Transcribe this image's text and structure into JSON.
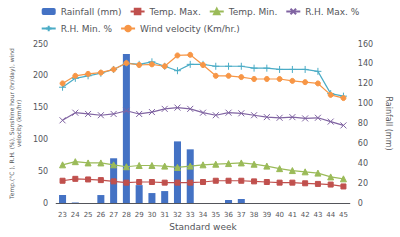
{
  "chart_data": {
    "type": "line",
    "xlabel": "Standard week",
    "ylabel": "Temp.(°C ), R.H. (%), Sunshine hour (hr/day), wind\nvelocity (km/hr)",
    "y2label": "Rainfall (mm)",
    "categories": [
      23,
      24,
      25,
      26,
      27,
      28,
      29,
      30,
      31,
      32,
      33,
      34,
      35,
      36,
      37,
      38,
      39,
      40,
      41,
      42,
      43,
      44,
      45
    ],
    "series": [
      {
        "name": "Rainfall (mm)",
        "type": "bar",
        "axis": "y2",
        "color": "#4472c4",
        "values": [
          8,
          0.5,
          0,
          8,
          45,
          150,
          18,
          10,
          12,
          62,
          54,
          0,
          0,
          3,
          4,
          0,
          0,
          0,
          0,
          0,
          0,
          0,
          0
        ]
      },
      {
        "name": "Temp. Max.",
        "type": "line",
        "color": "#c0504d",
        "marker": "square",
        "values": [
          35,
          38,
          37,
          36,
          34,
          32,
          33,
          33,
          32,
          32,
          32,
          33,
          35,
          35,
          35,
          34,
          33,
          32,
          32,
          31,
          30,
          29,
          26
        ]
      },
      {
        "name": "Temp. Min.",
        "type": "line",
        "color": "#9bbb59",
        "marker": "triangle",
        "values": [
          60,
          65,
          63,
          63,
          60,
          57,
          59,
          59,
          58,
          56,
          58,
          60,
          61,
          62,
          63,
          61,
          58,
          54,
          51,
          49,
          47,
          41,
          38
        ]
      },
      {
        "name": "R.H. Max. %",
        "type": "line",
        "color": "#8064a2",
        "marker": "x",
        "values": [
          130,
          142,
          140,
          138,
          140,
          145,
          140,
          143,
          148,
          150,
          148,
          142,
          138,
          142,
          141,
          138,
          135,
          134,
          135,
          133,
          134,
          128,
          122
        ]
      },
      {
        "name": "R.H. Min. %",
        "type": "line",
        "color": "#4bacc6",
        "marker": "plus",
        "values": [
          182,
          196,
          200,
          204,
          210,
          220,
          218,
          222,
          215,
          208,
          218,
          218,
          215,
          215,
          215,
          212,
          212,
          210,
          210,
          210,
          207,
          172,
          168
        ]
      },
      {
        "name": "Wind velocity (Km/hr.)",
        "type": "line",
        "color": "#f79646",
        "marker": "circle",
        "values": [
          188,
          200,
          203,
          205,
          210,
          220,
          217,
          218,
          215,
          232,
          233,
          217,
          200,
          200,
          198,
          195,
          195,
          195,
          192,
          190,
          188,
          170,
          165
        ]
      }
    ],
    "ylim": [
      0,
      250
    ],
    "yticks": [
      0,
      50,
      100,
      150,
      200,
      250
    ],
    "y2lim": [
      0,
      160
    ],
    "y2ticks": [
      0,
      20,
      40,
      60,
      80,
      100,
      120,
      140,
      160
    ],
    "grid": false,
    "legend": "top"
  }
}
